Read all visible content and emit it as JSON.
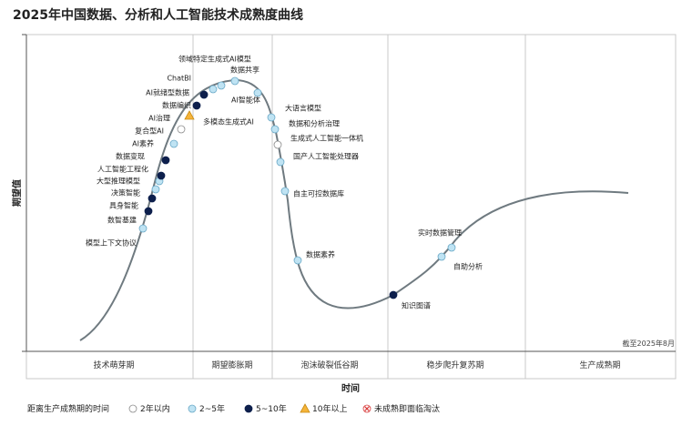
{
  "chart_data": {
    "type": "scatter",
    "title": "2025年中国数据、分析和人工智能技术成熟度曲线",
    "xlabel": "时间",
    "ylabel": "期望值",
    "note": "截至2025年8月",
    "phases": [
      "技术萌芽期",
      "期望膨胀期",
      "泡沫破裂低谷期",
      "稳步爬升复苏期",
      "生产成熟期"
    ],
    "legend": {
      "title": "距离生产成熟期的时间",
      "items": [
        {
          "key": "lt2",
          "label": "2年以内",
          "marker": "circle",
          "fill": "#ffffff",
          "stroke": "#8a8a8a"
        },
        {
          "key": "2to5",
          "label": "2~5年",
          "marker": "circle",
          "fill": "#bfe3f3",
          "stroke": "#6aa9c7"
        },
        {
          "key": "5to10",
          "label": "5~10年",
          "marker": "circle",
          "fill": "#0d1f4c",
          "stroke": "#0d1f4c"
        },
        {
          "key": "gt10",
          "label": "10年以上",
          "marker": "triangle",
          "fill": "#f5b43a",
          "stroke": "#c88a10"
        },
        {
          "key": "obsolete",
          "label": "未成熟即面临淘汰",
          "marker": "x-circle",
          "fill": "#ffffff",
          "stroke": "#d93a3a"
        }
      ]
    },
    "points": [
      {
        "label": "模型上下文协议",
        "cat": "2to5"
      },
      {
        "label": "数智基建",
        "cat": "5to10"
      },
      {
        "label": "具身智能",
        "cat": "5to10"
      },
      {
        "label": "决策智能",
        "cat": "2to5"
      },
      {
        "label": "大型推理模型",
        "cat": "2to5"
      },
      {
        "label": "人工智能工程化",
        "cat": "5to10"
      },
      {
        "label": "数据变现",
        "cat": "5to10"
      },
      {
        "label": "AI素养",
        "cat": "2to5"
      },
      {
        "label": "复合型AI",
        "cat": "lt2"
      },
      {
        "label": "AI治理",
        "cat": "gt10"
      },
      {
        "label": "数据编织",
        "cat": "5to10"
      },
      {
        "label": "AI就绪型数据",
        "cat": "2to5"
      },
      {
        "label": "多模态生成式AI",
        "cat": "5to10"
      },
      {
        "label": "ChatBI",
        "cat": "2to5"
      },
      {
        "label": "领域特定生成式AI模型",
        "cat": "2to5"
      },
      {
        "label": "数据共享",
        "cat": "2to5"
      },
      {
        "label": "AI智能体",
        "cat": "2to5"
      },
      {
        "label": "大语言模型",
        "cat": "2to5"
      },
      {
        "label": "数据和分析治理",
        "cat": "2to5"
      },
      {
        "label": "生成式人工智能一体机",
        "cat": "lt2"
      },
      {
        "label": "国产人工智能处理器",
        "cat": "2to5"
      },
      {
        "label": "自主可控数据库",
        "cat": "2to5"
      },
      {
        "label": "数据素养",
        "cat": "2to5"
      },
      {
        "label": "知识图谱",
        "cat": "5to10"
      },
      {
        "label": "自助分析",
        "cat": "2to5"
      },
      {
        "label": "实时数据管理",
        "cat": "2to5"
      }
    ]
  }
}
